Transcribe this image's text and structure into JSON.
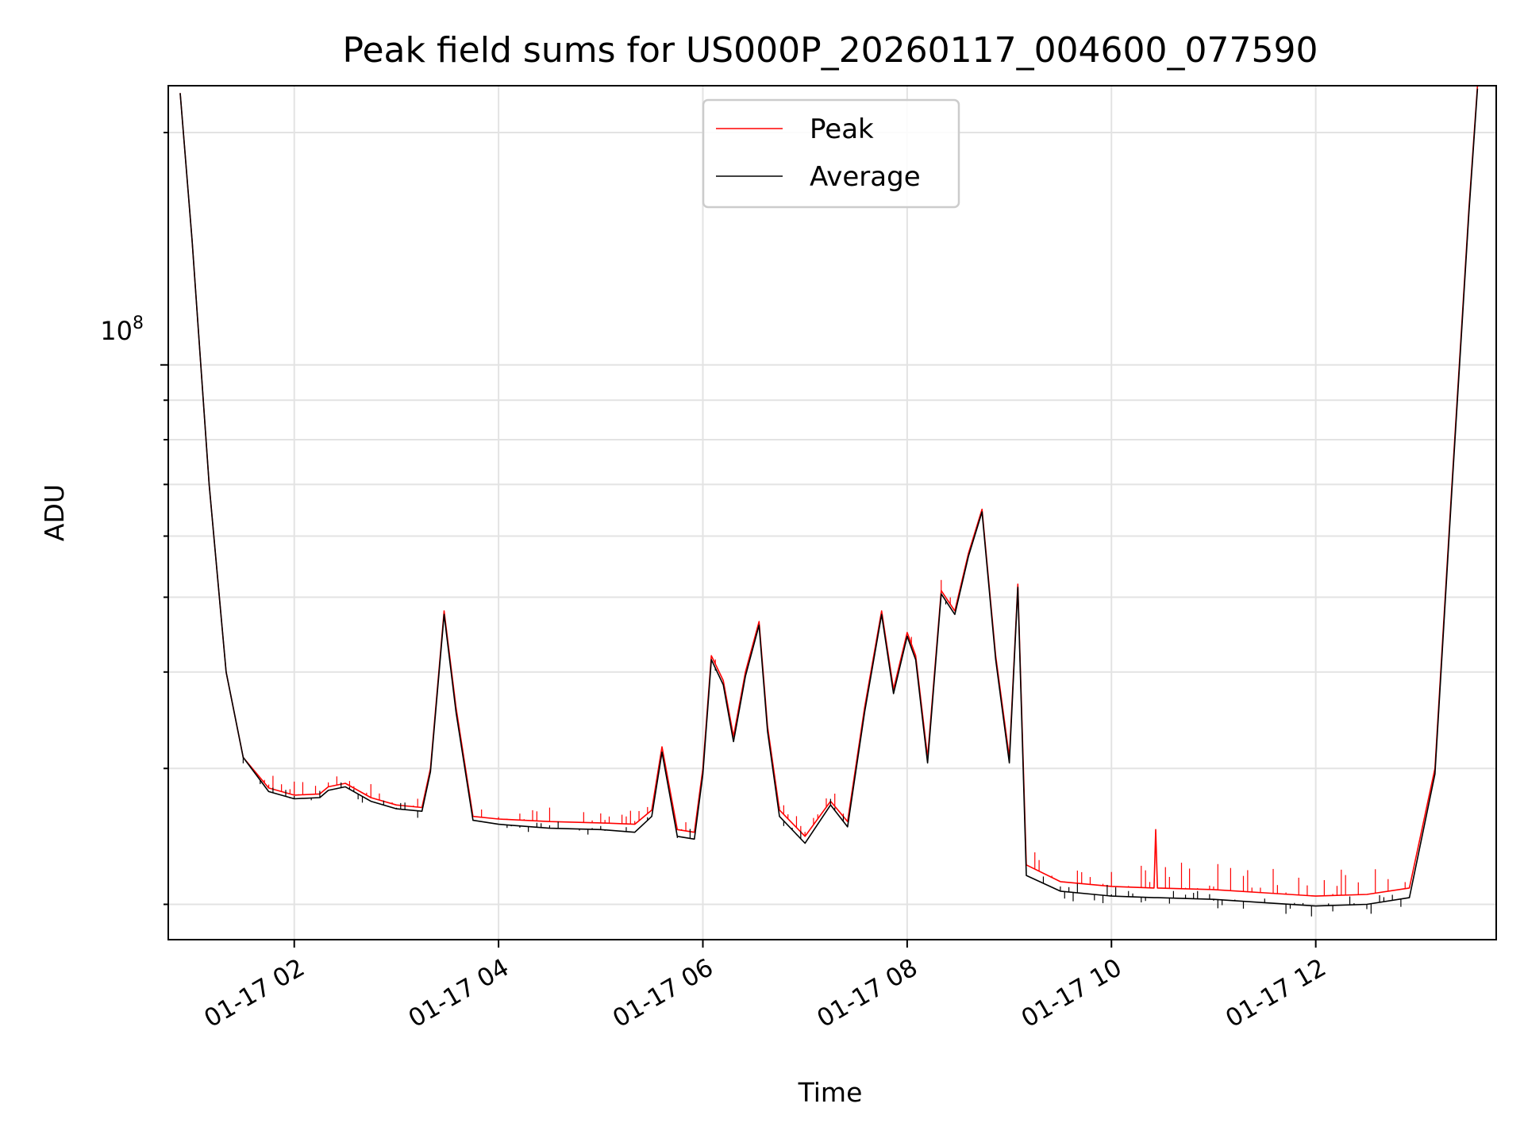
{
  "chart_data": {
    "type": "line",
    "title": "Peak field sums for US000P_20260117_004600_077590",
    "xlabel": "Time",
    "ylabel": "ADU",
    "yscale": "log",
    "xlim": [
      "2026-01-17T00:46",
      "2026-01-17T13:46"
    ],
    "ylim": [
      18000000,
      230000000
    ],
    "grid": true,
    "legend": "upper center",
    "x_ticks": [
      "01-17 02",
      "01-17 04",
      "01-17 06",
      "01-17 08",
      "01-17 10",
      "01-17 12"
    ],
    "y_tick_major": {
      "base": "10",
      "exponent": "8"
    },
    "series": [
      {
        "name": "Peak",
        "color": "#ff0000",
        "points": [
          [
            "2026-01-17T00:53",
            225000000
          ],
          [
            "2026-01-17T01:00",
            145000000
          ],
          [
            "2026-01-17T01:10",
            70000000
          ],
          [
            "2026-01-17T01:20",
            40000000
          ],
          [
            "2026-01-17T01:30",
            31000000
          ],
          [
            "2026-01-17T01:45",
            28300000
          ],
          [
            "2026-01-17T02:00",
            27700000
          ],
          [
            "2026-01-17T02:15",
            27800000
          ],
          [
            "2026-01-17T02:20",
            28400000
          ],
          [
            "2026-01-17T02:30",
            28700000
          ],
          [
            "2026-01-17T02:45",
            27500000
          ],
          [
            "2026-01-17T03:00",
            26900000
          ],
          [
            "2026-01-17T03:15",
            26700000
          ],
          [
            "2026-01-17T03:20",
            30000000
          ],
          [
            "2026-01-17T03:28",
            48000000
          ],
          [
            "2026-01-17T03:35",
            36000000
          ],
          [
            "2026-01-17T03:45",
            26000000
          ],
          [
            "2026-01-17T04:00",
            25800000
          ],
          [
            "2026-01-17T04:30",
            25600000
          ],
          [
            "2026-01-17T05:00",
            25500000
          ],
          [
            "2026-01-17T05:20",
            25400000
          ],
          [
            "2026-01-17T05:30",
            26500000
          ],
          [
            "2026-01-17T05:36",
            32000000
          ],
          [
            "2026-01-17T05:45",
            25000000
          ],
          [
            "2026-01-17T05:55",
            24800000
          ],
          [
            "2026-01-17T06:00",
            30000000
          ],
          [
            "2026-01-17T06:05",
            42000000
          ],
          [
            "2026-01-17T06:12",
            39000000
          ],
          [
            "2026-01-17T06:18",
            33000000
          ],
          [
            "2026-01-17T06:25",
            40000000
          ],
          [
            "2026-01-17T06:33",
            46500000
          ],
          [
            "2026-01-17T06:38",
            34000000
          ],
          [
            "2026-01-17T06:45",
            26500000
          ],
          [
            "2026-01-17T07:00",
            24500000
          ],
          [
            "2026-01-17T07:15",
            27200000
          ],
          [
            "2026-01-17T07:25",
            25600000
          ],
          [
            "2026-01-17T07:35",
            36000000
          ],
          [
            "2026-01-17T07:45",
            48000000
          ],
          [
            "2026-01-17T07:52",
            38000000
          ],
          [
            "2026-01-17T08:00",
            45000000
          ],
          [
            "2026-01-17T08:05",
            42000000
          ],
          [
            "2026-01-17T08:12",
            31000000
          ],
          [
            "2026-01-17T08:20",
            51000000
          ],
          [
            "2026-01-17T08:28",
            48000000
          ],
          [
            "2026-01-17T08:36",
            57000000
          ],
          [
            "2026-01-17T08:44",
            65000000
          ],
          [
            "2026-01-17T08:52",
            42000000
          ],
          [
            "2026-01-17T09:00",
            31000000
          ],
          [
            "2026-01-17T09:05",
            52000000
          ],
          [
            "2026-01-17T09:10",
            22500000
          ],
          [
            "2026-01-17T09:30",
            21400000
          ],
          [
            "2026-01-17T10:00",
            21100000
          ],
          [
            "2026-01-17T10:25",
            21000000
          ],
          [
            "2026-01-17T10:26",
            25000000
          ],
          [
            "2026-01-17T10:27",
            21000000
          ],
          [
            "2026-01-17T11:00",
            20900000
          ],
          [
            "2026-01-17T11:30",
            20700000
          ],
          [
            "2026-01-17T12:00",
            20500000
          ],
          [
            "2026-01-17T12:30",
            20600000
          ],
          [
            "2026-01-17T12:55",
            21000000
          ],
          [
            "2026-01-17T13:10",
            30000000
          ],
          [
            "2026-01-17T13:20",
            70000000
          ],
          [
            "2026-01-17T13:30",
            160000000
          ],
          [
            "2026-01-17T13:35",
            230000000
          ]
        ]
      },
      {
        "name": "Average",
        "color": "#000000",
        "points": [
          [
            "2026-01-17T00:53",
            225000000
          ],
          [
            "2026-01-17T01:00",
            145000000
          ],
          [
            "2026-01-17T01:10",
            70000000
          ],
          [
            "2026-01-17T01:20",
            40000000
          ],
          [
            "2026-01-17T01:30",
            31000000
          ],
          [
            "2026-01-17T01:45",
            28000000
          ],
          [
            "2026-01-17T02:00",
            27400000
          ],
          [
            "2026-01-17T02:15",
            27500000
          ],
          [
            "2026-01-17T02:20",
            28100000
          ],
          [
            "2026-01-17T02:30",
            28400000
          ],
          [
            "2026-01-17T02:45",
            27200000
          ],
          [
            "2026-01-17T03:00",
            26600000
          ],
          [
            "2026-01-17T03:15",
            26400000
          ],
          [
            "2026-01-17T03:20",
            29700000
          ],
          [
            "2026-01-17T03:28",
            47500000
          ],
          [
            "2026-01-17T03:35",
            35500000
          ],
          [
            "2026-01-17T03:45",
            25700000
          ],
          [
            "2026-01-17T04:00",
            25400000
          ],
          [
            "2026-01-17T04:30",
            25100000
          ],
          [
            "2026-01-17T05:00",
            25000000
          ],
          [
            "2026-01-17T05:20",
            24800000
          ],
          [
            "2026-01-17T05:30",
            26000000
          ],
          [
            "2026-01-17T05:36",
            31500000
          ],
          [
            "2026-01-17T05:45",
            24500000
          ],
          [
            "2026-01-17T05:55",
            24300000
          ],
          [
            "2026-01-17T06:00",
            29500000
          ],
          [
            "2026-01-17T06:05",
            41500000
          ],
          [
            "2026-01-17T06:12",
            38500000
          ],
          [
            "2026-01-17T06:18",
            32500000
          ],
          [
            "2026-01-17T06:25",
            39500000
          ],
          [
            "2026-01-17T06:33",
            46000000
          ],
          [
            "2026-01-17T06:38",
            33500000
          ],
          [
            "2026-01-17T06:45",
            26000000
          ],
          [
            "2026-01-17T07:00",
            24000000
          ],
          [
            "2026-01-17T07:15",
            26900000
          ],
          [
            "2026-01-17T07:25",
            25200000
          ],
          [
            "2026-01-17T07:35",
            35500000
          ],
          [
            "2026-01-17T07:45",
            47500000
          ],
          [
            "2026-01-17T07:52",
            37500000
          ],
          [
            "2026-01-17T08:00",
            44500000
          ],
          [
            "2026-01-17T08:05",
            41500000
          ],
          [
            "2026-01-17T08:12",
            30500000
          ],
          [
            "2026-01-17T08:20",
            50500000
          ],
          [
            "2026-01-17T08:28",
            47500000
          ],
          [
            "2026-01-17T08:36",
            56500000
          ],
          [
            "2026-01-17T08:44",
            64500000
          ],
          [
            "2026-01-17T08:52",
            41500000
          ],
          [
            "2026-01-17T09:00",
            30500000
          ],
          [
            "2026-01-17T09:05",
            51500000
          ],
          [
            "2026-01-17T09:10",
            21800000
          ],
          [
            "2026-01-17T09:30",
            20800000
          ],
          [
            "2026-01-17T10:00",
            20500000
          ],
          [
            "2026-01-17T10:25",
            20400000
          ],
          [
            "2026-01-17T10:27",
            20400000
          ],
          [
            "2026-01-17T11:00",
            20300000
          ],
          [
            "2026-01-17T11:30",
            20100000
          ],
          [
            "2026-01-17T12:00",
            19900000
          ],
          [
            "2026-01-17T12:30",
            20000000
          ],
          [
            "2026-01-17T12:55",
            20400000
          ],
          [
            "2026-01-17T13:10",
            29500000
          ],
          [
            "2026-01-17T13:20",
            69000000
          ],
          [
            "2026-01-17T13:30",
            158000000
          ],
          [
            "2026-01-17T13:35",
            228000000
          ]
        ]
      }
    ]
  }
}
